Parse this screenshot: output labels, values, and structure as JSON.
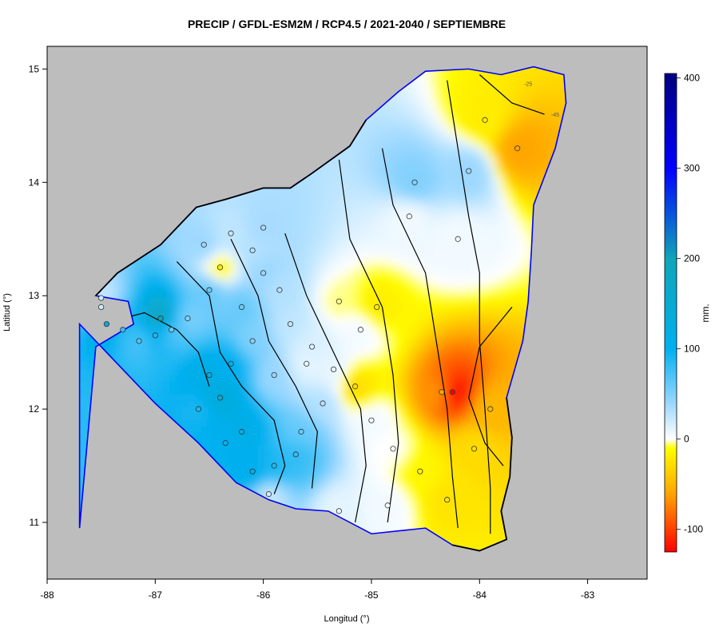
{
  "title": "PRECIP / GFDL-ESM2M / RCP4.5 / 2021-2040 / SEPTIEMBRE",
  "colors": {
    "sea": "#bdbdbd",
    "coast": "#0000ff",
    "border": "#000000",
    "contour": "#000000",
    "station_outline": "#333333"
  },
  "chart_data": {
    "type": "heatmap",
    "title": "PRECIP / GFDL-ESM2M / RCP4.5 / 2021-2040 / SEPTIEMBRE",
    "xlabel": "Longitud (°)",
    "ylabel": "Latitud (°)",
    "xlim": [
      -88,
      -82.45
    ],
    "ylim": [
      10.5,
      15.2
    ],
    "x_ticks": [
      -88,
      -87,
      -86,
      -85,
      -84,
      -83
    ],
    "y_ticks": [
      11,
      12,
      13,
      14,
      15
    ],
    "colorbar": {
      "label": "mm.",
      "range": [
        -125,
        405
      ],
      "ticks": [
        400,
        300,
        200,
        100,
        0,
        -100
      ],
      "stops": [
        {
          "v": -125,
          "c": "#ff0000"
        },
        {
          "v": -60,
          "c": "#ffa500"
        },
        {
          "v": -10,
          "c": "#ffff00"
        },
        {
          "v": 0,
          "c": "#ffffff"
        },
        {
          "v": 40,
          "c": "#9ad7ff"
        },
        {
          "v": 100,
          "c": "#00b0f0"
        },
        {
          "v": 200,
          "c": "#10a5b8"
        },
        {
          "v": 300,
          "c": "#0000ff"
        },
        {
          "v": 405,
          "c": "#000080"
        }
      ]
    },
    "contour_labels": [
      {
        "text": "-25",
        "lon": -83.55,
        "lat": 14.85
      },
      {
        "text": "-45",
        "lon": -83.3,
        "lat": 14.58
      }
    ],
    "country_outline": [
      [
        -87.7,
        10.95
      ],
      [
        -87.55,
        12.55
      ],
      [
        -87.2,
        12.75
      ],
      [
        -87.25,
        12.95
      ],
      [
        -87.55,
        13.0
      ],
      [
        -87.35,
        13.2
      ],
      [
        -86.95,
        13.45
      ],
      [
        -86.62,
        13.78
      ],
      [
        -86.35,
        13.85
      ],
      [
        -86.0,
        13.95
      ],
      [
        -85.75,
        13.95
      ],
      [
        -85.55,
        14.08
      ],
      [
        -85.2,
        14.32
      ],
      [
        -85.05,
        14.55
      ],
      [
        -84.75,
        14.8
      ],
      [
        -84.5,
        14.98
      ],
      [
        -84.1,
        15.0
      ],
      [
        -83.8,
        14.95
      ],
      [
        -83.5,
        15.02
      ],
      [
        -83.22,
        14.95
      ],
      [
        -83.2,
        14.7
      ],
      [
        -83.3,
        14.3
      ],
      [
        -83.5,
        13.8
      ],
      [
        -83.52,
        13.4
      ],
      [
        -83.55,
        12.95
      ],
      [
        -83.6,
        12.6
      ],
      [
        -83.75,
        12.1
      ],
      [
        -83.7,
        11.75
      ],
      [
        -83.72,
        11.4
      ],
      [
        -83.8,
        11.1
      ],
      [
        -83.75,
        10.85
      ],
      [
        -84.0,
        10.75
      ],
      [
        -84.25,
        10.8
      ],
      [
        -84.5,
        10.95
      ],
      [
        -84.7,
        10.93
      ],
      [
        -85.0,
        10.9
      ],
      [
        -85.4,
        11.1
      ],
      [
        -85.7,
        11.12
      ],
      [
        -85.95,
        11.2
      ],
      [
        -86.25,
        11.35
      ],
      [
        -86.6,
        11.7
      ],
      [
        -87.0,
        12.05
      ],
      [
        -87.4,
        12.45
      ],
      [
        -87.7,
        12.75
      ]
    ],
    "stations": [
      {
        "lon": -86.95,
        "lat": 12.8,
        "value": 200
      },
      {
        "lon": -87.5,
        "lat": 12.98,
        "value": 20
      },
      {
        "lon": -87.5,
        "lat": 12.9,
        "value": 20
      },
      {
        "lon": -87.45,
        "lat": 12.75,
        "value": 150
      },
      {
        "lon": -87.3,
        "lat": 12.7,
        "value": 80
      },
      {
        "lon": -87.15,
        "lat": 12.6,
        "value": 70
      },
      {
        "lon": -87.0,
        "lat": 12.65,
        "value": 90
      },
      {
        "lon": -86.85,
        "lat": 12.7,
        "value": 60
      },
      {
        "lon": -86.7,
        "lat": 12.8,
        "value": 50
      },
      {
        "lon": -86.55,
        "lat": 13.45,
        "value": 40
      },
      {
        "lon": -86.4,
        "lat": 13.25,
        "value": -20
      },
      {
        "lon": -86.1,
        "lat": 13.4,
        "value": 30
      },
      {
        "lon": -86.0,
        "lat": 13.2,
        "value": 40
      },
      {
        "lon": -85.85,
        "lat": 13.05,
        "value": 30
      },
      {
        "lon": -85.75,
        "lat": 12.75,
        "value": 25
      },
      {
        "lon": -85.55,
        "lat": 12.55,
        "value": 15
      },
      {
        "lon": -85.35,
        "lat": 12.35,
        "value": 10
      },
      {
        "lon": -85.15,
        "lat": 12.2,
        "value": -30
      },
      {
        "lon": -85.0,
        "lat": 11.9,
        "value": 5
      },
      {
        "lon": -84.8,
        "lat": 11.65,
        "value": 0
      },
      {
        "lon": -84.55,
        "lat": 11.45,
        "value": -15
      },
      {
        "lon": -84.3,
        "lat": 11.2,
        "value": -25
      },
      {
        "lon": -84.25,
        "lat": 12.15,
        "value": -125
      },
      {
        "lon": -83.65,
        "lat": 14.3,
        "value": -60
      },
      {
        "lon": -83.95,
        "lat": 14.55,
        "value": -20
      },
      {
        "lon": -84.1,
        "lat": 14.1,
        "value": 40
      },
      {
        "lon": -84.6,
        "lat": 14.0,
        "value": 50
      },
      {
        "lon": -84.65,
        "lat": 13.7,
        "value": 5
      },
      {
        "lon": -84.2,
        "lat": 13.5,
        "value": 5
      },
      {
        "lon": -84.95,
        "lat": 12.9,
        "value": -20
      },
      {
        "lon": -85.3,
        "lat": 12.95,
        "value": -5
      },
      {
        "lon": -85.1,
        "lat": 12.7,
        "value": 5
      },
      {
        "lon": -85.6,
        "lat": 12.4,
        "value": 10
      },
      {
        "lon": -85.45,
        "lat": 12.05,
        "value": 30
      },
      {
        "lon": -85.65,
        "lat": 11.8,
        "value": 60
      },
      {
        "lon": -85.9,
        "lat": 11.5,
        "value": 90
      },
      {
        "lon": -86.2,
        "lat": 11.8,
        "value": 120
      },
      {
        "lon": -86.4,
        "lat": 12.1,
        "value": 140
      },
      {
        "lon": -86.3,
        "lat": 12.4,
        "value": 100
      },
      {
        "lon": -86.5,
        "lat": 12.3,
        "value": 120
      },
      {
        "lon": -86.2,
        "lat": 12.9,
        "value": 60
      },
      {
        "lon": -86.1,
        "lat": 12.6,
        "value": 50
      },
      {
        "lon": -85.9,
        "lat": 12.3,
        "value": 40
      },
      {
        "lon": -85.95,
        "lat": 11.25,
        "value": 20
      },
      {
        "lon": -85.3,
        "lat": 11.1,
        "value": 10
      },
      {
        "lon": -84.85,
        "lat": 11.15,
        "value": 5
      },
      {
        "lon": -84.05,
        "lat": 11.65,
        "value": -30
      },
      {
        "lon": -83.9,
        "lat": 12.0,
        "value": -50
      },
      {
        "lon": -84.35,
        "lat": 12.15,
        "value": -60
      },
      {
        "lon": -86.6,
        "lat": 12.0,
        "value": 90
      },
      {
        "lon": -86.35,
        "lat": 11.7,
        "value": 100
      },
      {
        "lon": -86.1,
        "lat": 11.45,
        "value": 110
      },
      {
        "lon": -85.7,
        "lat": 11.6,
        "value": 80
      },
      {
        "lon": -86.0,
        "lat": 13.6,
        "value": 35
      },
      {
        "lon": -86.3,
        "lat": 13.55,
        "value": 25
      },
      {
        "lon": -86.5,
        "lat": 13.05,
        "value": 60
      }
    ]
  }
}
